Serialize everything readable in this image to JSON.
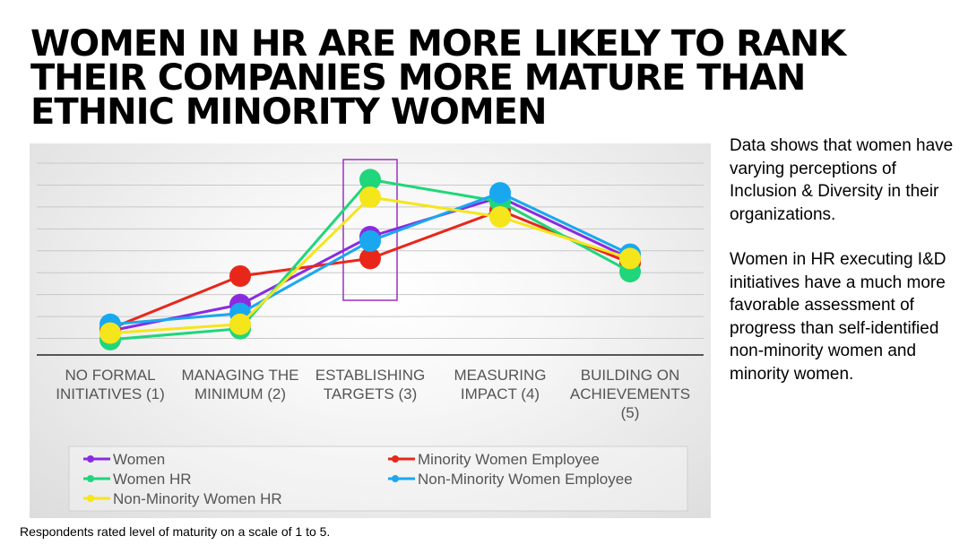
{
  "title": {
    "lines": [
      "WOMEN IN HR ARE MORE LIKELY TO RANK",
      "THEIR COMPANIES MORE MATURE THAN",
      "ETHNIC MINORITY WOMEN"
    ]
  },
  "sidebar": {
    "paragraph1": "Data shows that women have varying perceptions of Inclusion & Diversity in their organizations.",
    "paragraph2": "Women in HR executing I&D initiatives have a much more favorable assessment of progress than self-identified non-minority women and minority women."
  },
  "footnote": "Respondents rated level of maturity on a scale of 1 to 5.",
  "chart_data": {
    "type": "line",
    "categories": [
      [
        "NO FORMAL",
        "INITIATIVES (1)"
      ],
      [
        "MANAGING THE",
        "MINIMUM (2)"
      ],
      [
        "ESTABLISHING",
        "TARGETS (3)"
      ],
      [
        "MEASURING",
        "IMPACT (4)"
      ],
      [
        "BUILDING ON",
        "ACHIEVEMENTS",
        "(5)"
      ]
    ],
    "ylim": [
      0,
      45
    ],
    "grid": true,
    "highlight_category_index": 2,
    "legend_position": "bottom",
    "series": [
      {
        "name": "Women",
        "color": "#8a2be2",
        "values": [
          5.5,
          11.5,
          27,
          36,
          22
        ]
      },
      {
        "name": "Minority Women Employee",
        "color": "#e8271a",
        "values": [
          6,
          18,
          22,
          33,
          21
        ]
      },
      {
        "name": "Women HR",
        "color": "#1fd67a",
        "values": [
          3.5,
          6,
          40,
          35,
          19
        ]
      },
      {
        "name": "Non-Minority Women Employee",
        "color": "#19a8f0",
        "values": [
          7,
          9.5,
          26,
          37,
          23
        ]
      },
      {
        "name": "Non-Minority Women HR",
        "color": "#f5e51b",
        "values": [
          5,
          7,
          36,
          31.5,
          22
        ]
      }
    ]
  }
}
